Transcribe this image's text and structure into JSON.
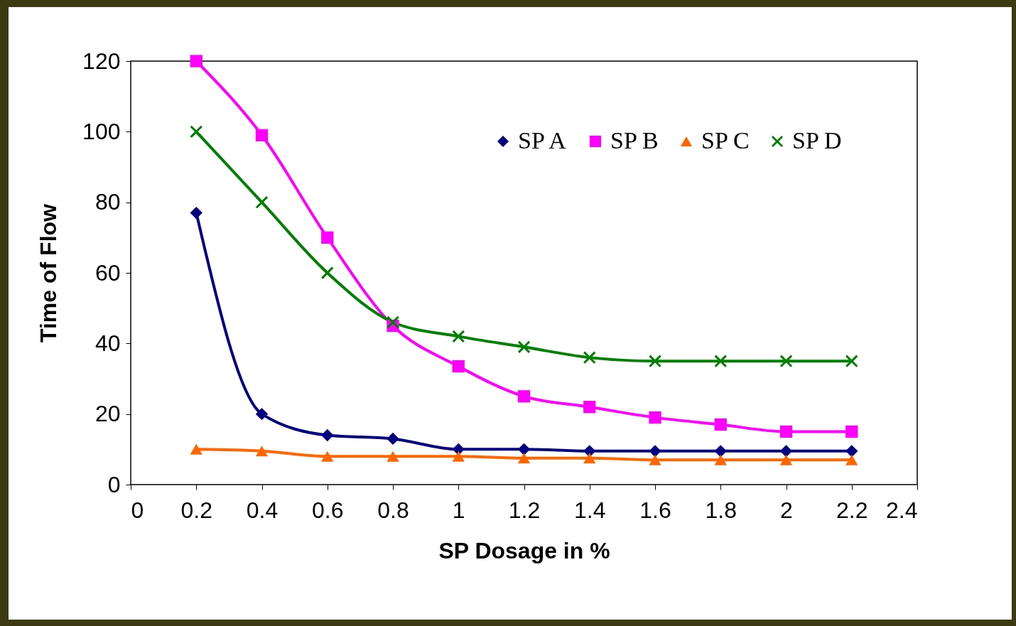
{
  "chart_data": {
    "type": "line",
    "xlabel": "SP Dosage in  %",
    "ylabel": "Time of Flow",
    "x": [
      0.2,
      0.4,
      0.6,
      0.8,
      1,
      1.2,
      1.4,
      1.6,
      1.8,
      2,
      2.2
    ],
    "series": [
      {
        "name": "SP  A",
        "color": "#000080",
        "marker": "diamond",
        "values": [
          77,
          20,
          14,
          13,
          10,
          10,
          9.5,
          9.5,
          9.5,
          9.5,
          9.5
        ]
      },
      {
        "name": "SP  B",
        "color": "#ff00ff",
        "marker": "square",
        "values": [
          120,
          99,
          70,
          45,
          33.5,
          25,
          22,
          19,
          17,
          15,
          15
        ]
      },
      {
        "name": "SP  C",
        "color": "#ff6600",
        "marker": "triangle",
        "values": [
          10,
          9.5,
          8,
          8,
          8,
          7.5,
          7.5,
          7,
          7,
          7,
          7
        ]
      },
      {
        "name": "SP  D",
        "color": "#008000",
        "marker": "cross",
        "values": [
          100,
          80,
          60,
          46,
          42,
          39,
          36,
          35,
          35,
          35,
          35
        ]
      }
    ],
    "xlim": [
      0,
      2.4
    ],
    "xticks": [
      0,
      0.2,
      0.4,
      0.6,
      0.8,
      1,
      1.2,
      1.4,
      1.6,
      1.8,
      2,
      2.2,
      2.4
    ],
    "ylim": [
      0,
      120
    ],
    "yticks": [
      0,
      20,
      40,
      60,
      80,
      100,
      120
    ],
    "grid": false,
    "legend": "top right",
    "line_style": "solid"
  }
}
